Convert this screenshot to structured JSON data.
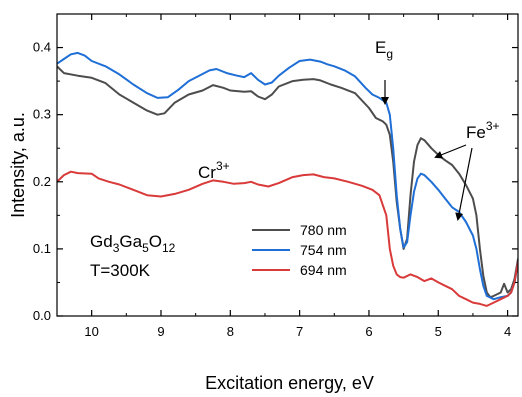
{
  "chart_data": {
    "type": "line",
    "xlabel": "Excitation energy, eV",
    "ylabel": "Intensity, a.u.",
    "xlim": [
      10.5,
      3.85
    ],
    "ylim": [
      0.0,
      0.45
    ],
    "x_reversed": true,
    "x_ticks": [
      10,
      9,
      8,
      7,
      6,
      5,
      4
    ],
    "x_tick_labels": [
      "10",
      "9",
      "8",
      "7",
      "6",
      "5",
      "4"
    ],
    "y_ticks": [
      0.0,
      0.1,
      0.2,
      0.3,
      0.4
    ],
    "y_tick_labels": [
      "0.0",
      "0.1",
      "0.2",
      "0.3",
      "0.4"
    ],
    "legend_position": "lower-center",
    "grid": false,
    "series": [
      {
        "name": "780 nm",
        "color": "#4d4d4d",
        "points": [
          [
            10.5,
            0.372
          ],
          [
            10.4,
            0.362
          ],
          [
            10.2,
            0.358
          ],
          [
            10.0,
            0.355
          ],
          [
            9.8,
            0.347
          ],
          [
            9.6,
            0.33
          ],
          [
            9.4,
            0.318
          ],
          [
            9.2,
            0.306
          ],
          [
            9.05,
            0.3
          ],
          [
            8.95,
            0.302
          ],
          [
            8.8,
            0.318
          ],
          [
            8.6,
            0.33
          ],
          [
            8.4,
            0.336
          ],
          [
            8.25,
            0.344
          ],
          [
            8.1,
            0.34
          ],
          [
            8.0,
            0.336
          ],
          [
            7.8,
            0.334
          ],
          [
            7.7,
            0.335
          ],
          [
            7.6,
            0.327
          ],
          [
            7.5,
            0.323
          ],
          [
            7.4,
            0.33
          ],
          [
            7.3,
            0.342
          ],
          [
            7.1,
            0.35
          ],
          [
            6.95,
            0.352
          ],
          [
            6.8,
            0.353
          ],
          [
            6.7,
            0.351
          ],
          [
            6.55,
            0.345
          ],
          [
            6.4,
            0.34
          ],
          [
            6.2,
            0.332
          ],
          [
            6.0,
            0.31
          ],
          [
            5.9,
            0.295
          ],
          [
            5.8,
            0.29
          ],
          [
            5.75,
            0.285
          ],
          [
            5.7,
            0.27
          ],
          [
            5.65,
            0.23
          ],
          [
            5.6,
            0.17
          ],
          [
            5.55,
            0.13
          ],
          [
            5.5,
            0.1
          ],
          [
            5.45,
            0.115
          ],
          [
            5.4,
            0.18
          ],
          [
            5.35,
            0.23
          ],
          [
            5.3,
            0.255
          ],
          [
            5.25,
            0.265
          ],
          [
            5.2,
            0.262
          ],
          [
            5.1,
            0.25
          ],
          [
            5.0,
            0.24
          ],
          [
            4.9,
            0.232
          ],
          [
            4.8,
            0.225
          ],
          [
            4.7,
            0.212
          ],
          [
            4.6,
            0.195
          ],
          [
            4.5,
            0.175
          ],
          [
            4.45,
            0.15
          ],
          [
            4.4,
            0.1
          ],
          [
            4.35,
            0.06
          ],
          [
            4.3,
            0.035
          ],
          [
            4.25,
            0.028
          ],
          [
            4.2,
            0.03
          ],
          [
            4.1,
            0.035
          ],
          [
            4.05,
            0.048
          ],
          [
            4.0,
            0.035
          ],
          [
            3.95,
            0.04
          ],
          [
            3.9,
            0.055
          ],
          [
            3.85,
            0.085
          ]
        ]
      },
      {
        "name": "754 nm",
        "color": "#1f6fd6",
        "points": [
          [
            10.5,
            0.376
          ],
          [
            10.4,
            0.383
          ],
          [
            10.3,
            0.39
          ],
          [
            10.2,
            0.392
          ],
          [
            10.1,
            0.388
          ],
          [
            10.0,
            0.38
          ],
          [
            9.8,
            0.372
          ],
          [
            9.6,
            0.36
          ],
          [
            9.4,
            0.345
          ],
          [
            9.2,
            0.332
          ],
          [
            9.05,
            0.325
          ],
          [
            8.9,
            0.326
          ],
          [
            8.75,
            0.337
          ],
          [
            8.6,
            0.35
          ],
          [
            8.45,
            0.358
          ],
          [
            8.3,
            0.366
          ],
          [
            8.2,
            0.368
          ],
          [
            8.05,
            0.362
          ],
          [
            7.9,
            0.358
          ],
          [
            7.8,
            0.356
          ],
          [
            7.7,
            0.362
          ],
          [
            7.6,
            0.352
          ],
          [
            7.5,
            0.345
          ],
          [
            7.4,
            0.348
          ],
          [
            7.3,
            0.358
          ],
          [
            7.15,
            0.37
          ],
          [
            7.0,
            0.38
          ],
          [
            6.85,
            0.382
          ],
          [
            6.7,
            0.379
          ],
          [
            6.6,
            0.375
          ],
          [
            6.5,
            0.372
          ],
          [
            6.35,
            0.366
          ],
          [
            6.2,
            0.357
          ],
          [
            6.05,
            0.34
          ],
          [
            5.95,
            0.33
          ],
          [
            5.85,
            0.325
          ],
          [
            5.75,
            0.318
          ],
          [
            5.7,
            0.3
          ],
          [
            5.65,
            0.25
          ],
          [
            5.6,
            0.18
          ],
          [
            5.55,
            0.13
          ],
          [
            5.5,
            0.102
          ],
          [
            5.45,
            0.11
          ],
          [
            5.4,
            0.15
          ],
          [
            5.35,
            0.185
          ],
          [
            5.3,
            0.205
          ],
          [
            5.25,
            0.212
          ],
          [
            5.2,
            0.21
          ],
          [
            5.1,
            0.2
          ],
          [
            5.0,
            0.188
          ],
          [
            4.9,
            0.175
          ],
          [
            4.8,
            0.162
          ],
          [
            4.7,
            0.155
          ],
          [
            4.6,
            0.14
          ],
          [
            4.5,
            0.12
          ],
          [
            4.45,
            0.1
          ],
          [
            4.4,
            0.07
          ],
          [
            4.35,
            0.045
          ],
          [
            4.3,
            0.03
          ],
          [
            4.2,
            0.025
          ],
          [
            4.1,
            0.028
          ],
          [
            4.0,
            0.03
          ],
          [
            3.95,
            0.035
          ],
          [
            3.9,
            0.05
          ],
          [
            3.85,
            0.08
          ]
        ]
      },
      {
        "name": "694 nm",
        "color": "#d93a3a",
        "points": [
          [
            10.5,
            0.2
          ],
          [
            10.4,
            0.21
          ],
          [
            10.3,
            0.215
          ],
          [
            10.2,
            0.213
          ],
          [
            10.0,
            0.212
          ],
          [
            9.9,
            0.205
          ],
          [
            9.75,
            0.2
          ],
          [
            9.6,
            0.196
          ],
          [
            9.4,
            0.188
          ],
          [
            9.2,
            0.18
          ],
          [
            9.0,
            0.178
          ],
          [
            8.8,
            0.182
          ],
          [
            8.6,
            0.188
          ],
          [
            8.4,
            0.197
          ],
          [
            8.25,
            0.202
          ],
          [
            8.1,
            0.2
          ],
          [
            7.95,
            0.197
          ],
          [
            7.8,
            0.198
          ],
          [
            7.7,
            0.2
          ],
          [
            7.6,
            0.196
          ],
          [
            7.45,
            0.193
          ],
          [
            7.3,
            0.198
          ],
          [
            7.1,
            0.207
          ],
          [
            6.95,
            0.21
          ],
          [
            6.8,
            0.211
          ],
          [
            6.65,
            0.207
          ],
          [
            6.5,
            0.205
          ],
          [
            6.3,
            0.2
          ],
          [
            6.1,
            0.194
          ],
          [
            5.95,
            0.188
          ],
          [
            5.85,
            0.18
          ],
          [
            5.75,
            0.15
          ],
          [
            5.7,
            0.1
          ],
          [
            5.65,
            0.075
          ],
          [
            5.6,
            0.062
          ],
          [
            5.55,
            0.058
          ],
          [
            5.5,
            0.057
          ],
          [
            5.4,
            0.062
          ],
          [
            5.3,
            0.058
          ],
          [
            5.2,
            0.052
          ],
          [
            5.1,
            0.056
          ],
          [
            5.0,
            0.05
          ],
          [
            4.9,
            0.045
          ],
          [
            4.8,
            0.04
          ],
          [
            4.7,
            0.03
          ],
          [
            4.6,
            0.025
          ],
          [
            4.5,
            0.02
          ],
          [
            4.4,
            0.018
          ],
          [
            4.3,
            0.015
          ],
          [
            4.2,
            0.02
          ],
          [
            4.1,
            0.025
          ],
          [
            4.0,
            0.03
          ],
          [
            3.95,
            0.035
          ],
          [
            3.9,
            0.05
          ],
          [
            3.85,
            0.08
          ]
        ]
      }
    ],
    "annotations": [
      {
        "id": "eg",
        "base": "E",
        "sub": "g",
        "sup": "",
        "arrow": true
      },
      {
        "id": "fe",
        "base": "Fe",
        "sub": "",
        "sup": "3+",
        "arrow": true
      },
      {
        "id": "cr",
        "base": "Cr",
        "sub": "",
        "sup": "3+",
        "arrow": false
      }
    ],
    "sample_label": {
      "formula_parts": [
        {
          "text": "Gd",
          "sub": false
        },
        {
          "text": "3",
          "sub": true
        },
        {
          "text": "Ga",
          "sub": false
        },
        {
          "text": "5",
          "sub": true
        },
        {
          "text": "O",
          "sub": false
        },
        {
          "text": "12",
          "sub": true
        }
      ],
      "temperature": "T=300K"
    }
  }
}
